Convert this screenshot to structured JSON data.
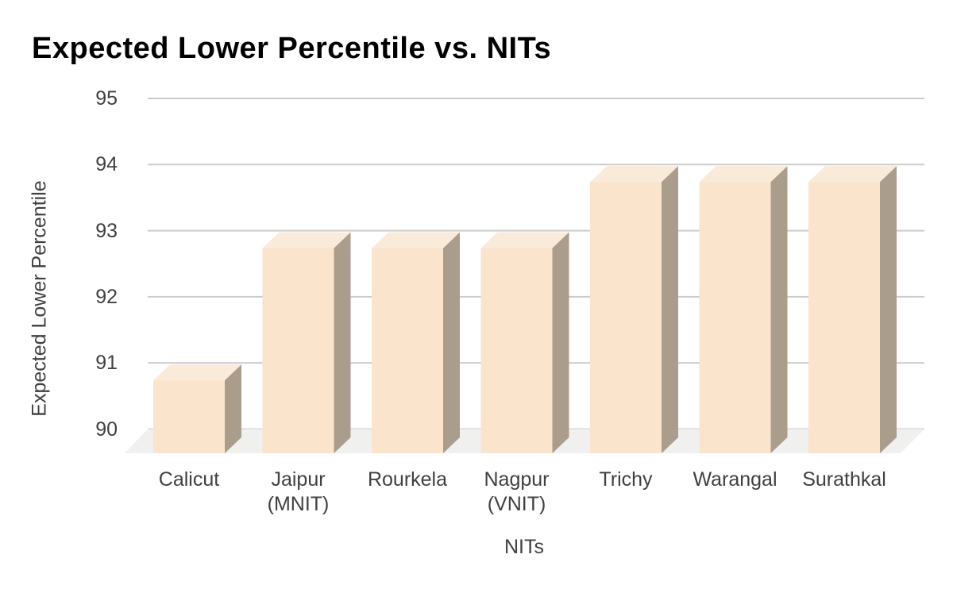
{
  "title": "Expected Lower Percentile vs. NITs",
  "chart_data": {
    "type": "bar",
    "style": "3d-column",
    "title": "Expected Lower Percentile vs. NITs",
    "xlabel": "NITs",
    "ylabel": "Expected Lower Percentile",
    "categories": [
      "Calicut",
      "Jaipur\n(MNIT)",
      "Rourkela",
      "Nagpur\n(VNIT)",
      "Trichy",
      "Warangal",
      "Surathkal"
    ],
    "values": [
      91,
      93,
      93,
      93,
      94,
      94,
      94
    ],
    "ylim": [
      90,
      95
    ],
    "yticks": [
      90,
      91,
      92,
      93,
      94,
      95
    ],
    "grid": true,
    "legend": "none",
    "colors": {
      "bar_front": "#fbe4cc",
      "bar_top": "#faeada",
      "bar_side": "#ab9d8c",
      "floor": "#f0f0ee",
      "gridline": "#cccccc",
      "axis_text": "#404040",
      "title_text": "#000000"
    }
  }
}
